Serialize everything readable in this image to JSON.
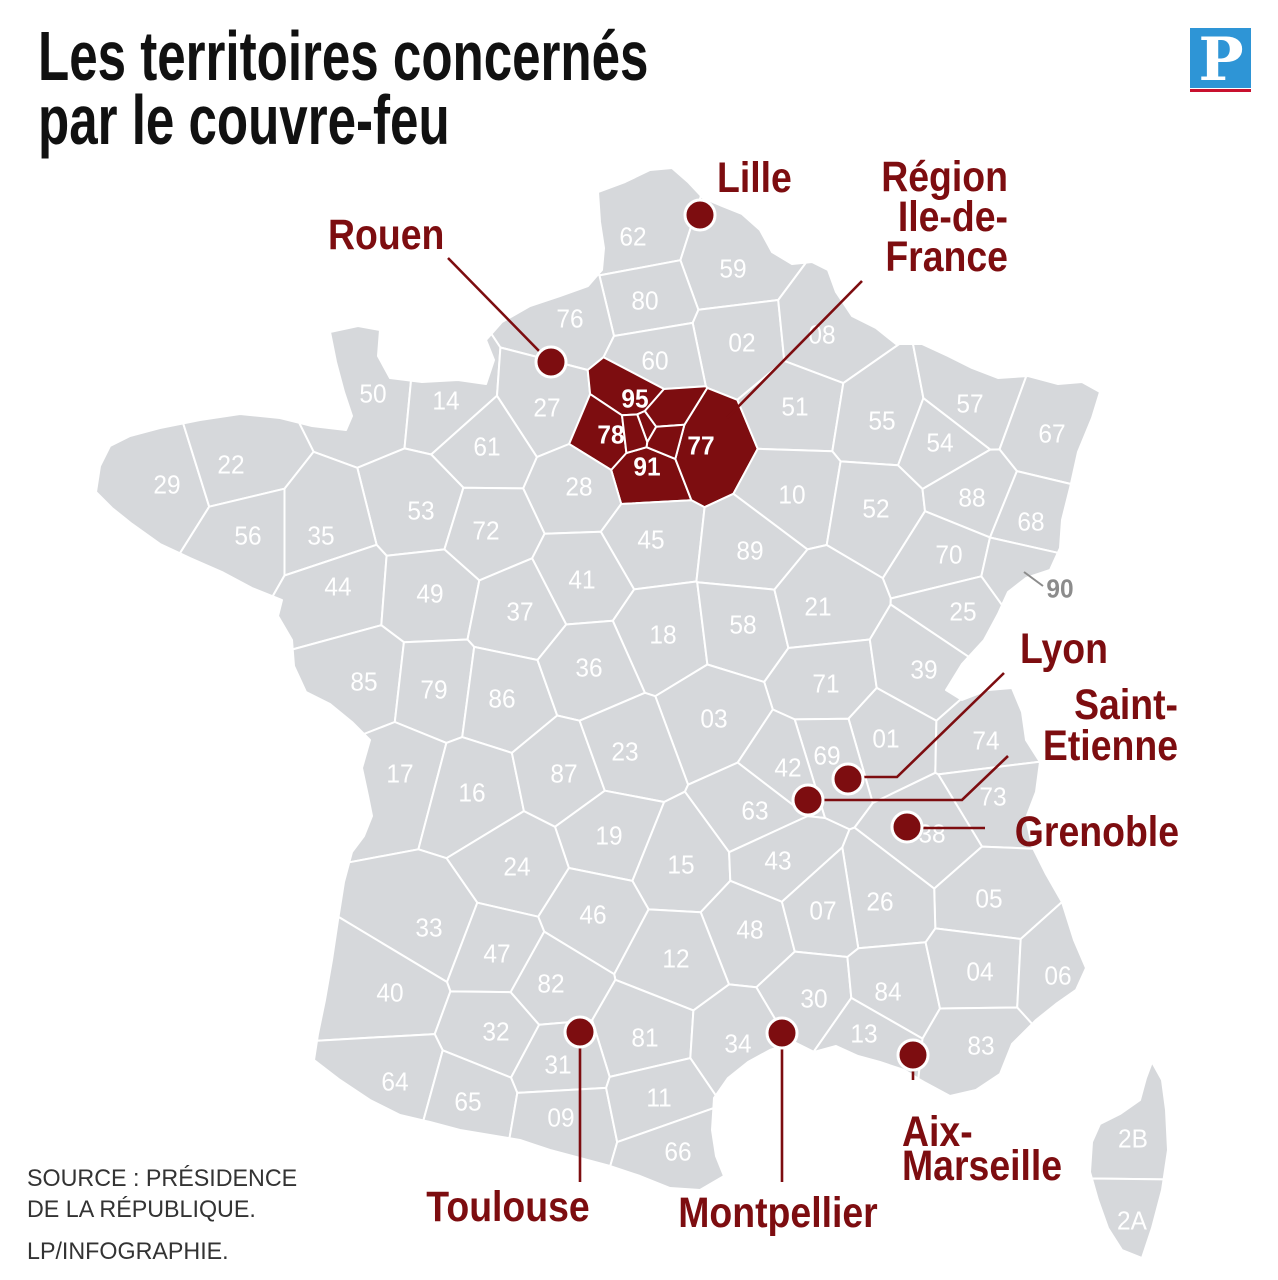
{
  "title": {
    "line1": "Les territoires concernés",
    "line2": "par le couvre-feu"
  },
  "logo": {
    "letter": "P"
  },
  "colors": {
    "region": "#d6d8db",
    "curfew": "#7d0d10",
    "accent": "#7d0d10",
    "logo": "#2e95d6",
    "logo_rule": "#c8102e",
    "text": "#111111",
    "muted": "#8c8c8c"
  },
  "map": {
    "curfew_departments": [
      "95",
      "78",
      "91",
      "77"
    ],
    "departments": [
      "62",
      "59",
      "80",
      "76",
      "02",
      "08",
      "60",
      "50",
      "14",
      "27",
      "95",
      "78",
      "91",
      "77",
      "51",
      "55",
      "57",
      "54",
      "67",
      "29",
      "22",
      "61",
      "28",
      "10",
      "52",
      "88",
      "68",
      "53",
      "72",
      "35",
      "56",
      "45",
      "89",
      "70",
      "44",
      "49",
      "41",
      "90",
      "37",
      "18",
      "58",
      "21",
      "25",
      "85",
      "79",
      "86",
      "36",
      "71",
      "39",
      "03",
      "01",
      "74",
      "69",
      "42",
      "17",
      "16",
      "87",
      "23",
      "73",
      "63",
      "19",
      "38",
      "24",
      "15",
      "43",
      "05",
      "26",
      "33",
      "46",
      "48",
      "07",
      "47",
      "12",
      "82",
      "40",
      "30",
      "84",
      "04",
      "06",
      "32",
      "81",
      "34",
      "13",
      "83",
      "31",
      "64",
      "65",
      "09",
      "11",
      "66",
      "2B",
      "2A"
    ]
  },
  "cities": [
    {
      "name_lines": [
        "Lille"
      ]
    },
    {
      "name_lines": [
        "Région",
        "Ile-de-",
        "France"
      ]
    },
    {
      "name_lines": [
        "Rouen"
      ]
    },
    {
      "name_lines": [
        "Lyon"
      ]
    },
    {
      "name_lines": [
        "Saint-",
        "Etienne"
      ]
    },
    {
      "name_lines": [
        "Grenoble"
      ]
    },
    {
      "name_lines": [
        "Aix-",
        "Marseille"
      ]
    },
    {
      "name_lines": [
        "Toulouse"
      ]
    },
    {
      "name_lines": [
        "Montpellier"
      ]
    }
  ],
  "source": {
    "line1": "SOURCE : PRÉSIDENCE",
    "line2": "DE LA RÉPUBLIQUE.",
    "credit": "LP/INFOGRAPHIE."
  }
}
